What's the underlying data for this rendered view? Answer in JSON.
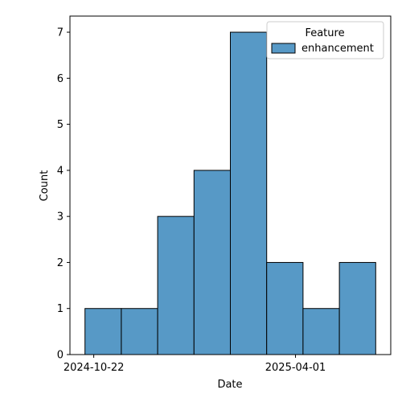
{
  "chart_data": {
    "type": "bar",
    "title": "",
    "xlabel": "Date",
    "ylabel": "Count",
    "bins": [
      {
        "start": "2024-10-15",
        "end": "2024-11-13",
        "count": 1
      },
      {
        "start": "2024-11-13",
        "end": "2024-12-12",
        "count": 1
      },
      {
        "start": "2024-12-12",
        "end": "2025-01-10",
        "count": 3
      },
      {
        "start": "2025-01-10",
        "end": "2025-02-08",
        "count": 4
      },
      {
        "start": "2025-02-08",
        "end": "2025-03-09",
        "count": 7
      },
      {
        "start": "2025-03-09",
        "end": "2025-04-07",
        "count": 2
      },
      {
        "start": "2025-04-07",
        "end": "2025-05-06",
        "count": 1
      },
      {
        "start": "2025-05-06",
        "end": "2025-06-04",
        "count": 2
      }
    ],
    "xlim": [
      "2024-10-03",
      "2025-06-16"
    ],
    "ylim": [
      0,
      7.35
    ],
    "x_ticks": [
      "2024-10-22",
      "2025-04-01"
    ],
    "y_ticks": [
      0,
      1,
      2,
      3,
      4,
      5,
      6,
      7
    ],
    "legend": {
      "title": "Feature",
      "placement": "top-right",
      "entries": [
        {
          "label": "enhancement",
          "color": "#5799c6"
        }
      ]
    },
    "bar_color": "#5799c6",
    "edge_color": "#000000",
    "grid": false
  }
}
